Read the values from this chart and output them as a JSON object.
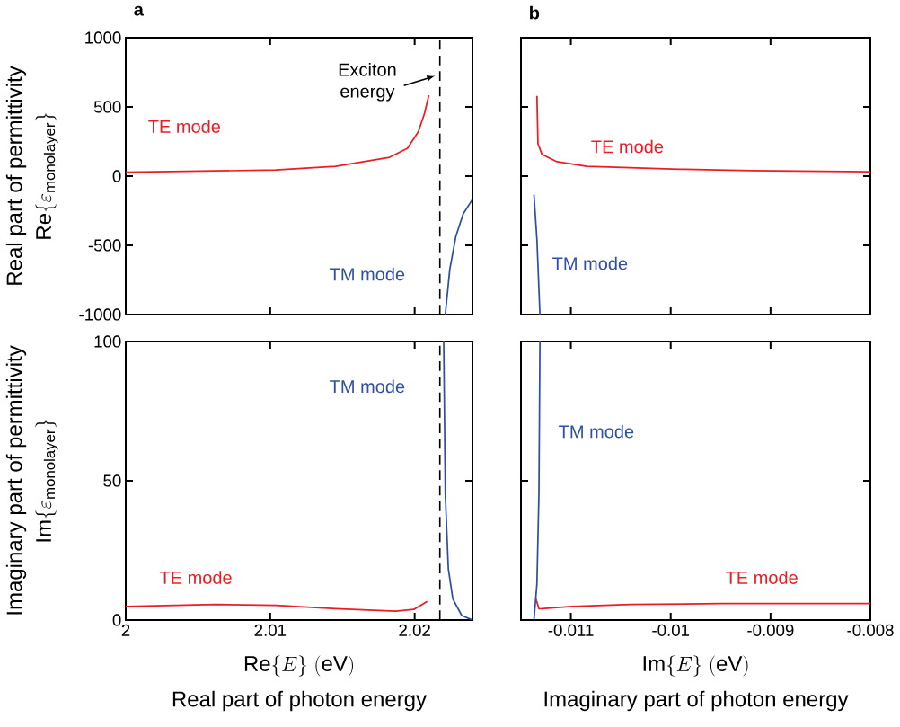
{
  "chart_data": [
    {
      "type": "line",
      "title": "a",
      "ylabel": "Real part of permittivity",
      "annotations": [
        "\\mathrm{Re}\\{\\varepsilon_{\\mathrm{monolayer}}\\}"
      ],
      "xlim": [
        2,
        2.024
      ],
      "xticks": [
        2,
        2.01,
        2.02
      ],
      "ylim": [
        -1000,
        1000
      ],
      "yticks": [
        -1000,
        -500,
        0,
        500,
        1000
      ],
      "tick_labels": "y",
      "ref_lines": [
        {
          "axis": "x",
          "value": 2.02174,
          "label": "Exciton energy",
          "color": "#000000",
          "line_style": "dashed"
        }
      ],
      "series": [
        {
          "name": "TE mode",
          "color": "#ed1c24",
          "x": [
            2.0,
            2.01039,
            2.01452,
            2.01826,
            2.0195,
            2.02025,
            2.02067,
            2.02098
          ],
          "values": [
            28,
            44,
            71,
            136,
            201,
            320,
            450,
            584
          ]
        },
        {
          "name": "TM mode",
          "color": "#2e4fa5",
          "x": [
            2.02212,
            2.02243,
            2.02285,
            2.02336,
            2.024
          ],
          "values": [
            -1000,
            -675,
            -435,
            -273,
            -169
          ]
        }
      ]
    },
    {
      "type": "line",
      "title": "b",
      "xlim": [
        -0.0115,
        -0.008
      ],
      "xticks": [
        -0.011,
        -0.01,
        -0.009,
        -0.008
      ],
      "ylim": [
        -1000,
        1000
      ],
      "yticks": [
        -1000,
        -500,
        0,
        500,
        1000
      ],
      "tick_labels": false,
      "series": [
        {
          "name": "TE mode",
          "color": "#ed1c24",
          "x": [
            -0.01134,
            -0.01133,
            -0.01129,
            -0.01114,
            -0.01084,
            -0.00991,
            -0.00919,
            -0.008
          ],
          "values": [
            580,
            234,
            158,
            104,
            71,
            50,
            39,
            32
          ]
        },
        {
          "name": "TM mode",
          "color": "#2e4fa5",
          "x": [
            -0.01137,
            -0.01134,
            -0.01131
          ],
          "values": [
            -134,
            -459,
            -1000
          ]
        }
      ]
    },
    {
      "type": "line",
      "ylabel": "Imaginary part of permittivity",
      "xlabel": "Real part of photon energy",
      "annotations": [
        "\\mathrm{Im}\\{\\varepsilon_{\\mathrm{monolayer}}\\}",
        "\\mathrm{Re}\\{E\\}\\ (\\mathrm{eV})"
      ],
      "xlim": [
        2,
        2.024
      ],
      "xticks": [
        2,
        2.01,
        2.02
      ],
      "ylim": [
        0,
        100
      ],
      "yticks": [
        0,
        50,
        100
      ],
      "ref_lines": [
        {
          "axis": "x",
          "value": 2.02174,
          "color": "#000000",
          "line_style": "dashed"
        }
      ],
      "series": [
        {
          "name": "TE mode",
          "color": "#ed1c24",
          "x": [
            2.0,
            2.00623,
            2.01039,
            2.01452,
            2.01869,
            2.01994,
            2.02087
          ],
          "values": [
            4.9,
            5.6,
            5.3,
            4.1,
            3.2,
            3.8,
            6.7
          ]
        },
        {
          "name": "TM mode",
          "color": "#2e4fa5",
          "x": [
            2.02201,
            2.02212,
            2.02233,
            2.02264,
            2.02326,
            2.024
          ],
          "values": [
            100,
            45,
            18.4,
            7.6,
            1.6,
            0
          ]
        }
      ]
    },
    {
      "type": "line",
      "xlabel": "Imaginary part of photon energy",
      "annotations": [
        "\\mathrm{Im}\\{E\\}\\ (\\mathrm{eV})"
      ],
      "xlim": [
        -0.0115,
        -0.008
      ],
      "xticks": [
        -0.011,
        -0.01,
        -0.009,
        -0.008
      ],
      "ylim": [
        0,
        100
      ],
      "yticks": [
        0,
        50,
        100
      ],
      "tick_labels": "x",
      "series": [
        {
          "name": "TE mode",
          "color": "#ed1c24",
          "x": [
            -0.01135,
            -0.01132,
            -0.01099,
            -0.0104,
            -0.00949,
            -0.008
          ],
          "values": [
            7.6,
            4.0,
            4.9,
            5.6,
            5.9,
            5.9
          ]
        },
        {
          "name": "TM mode",
          "color": "#2e4fa5",
          "x": [
            -0.01137,
            -0.01134,
            -0.01132,
            -0.01131
          ],
          "values": [
            0,
            13,
            45.5,
            100
          ]
        }
      ]
    }
  ]
}
